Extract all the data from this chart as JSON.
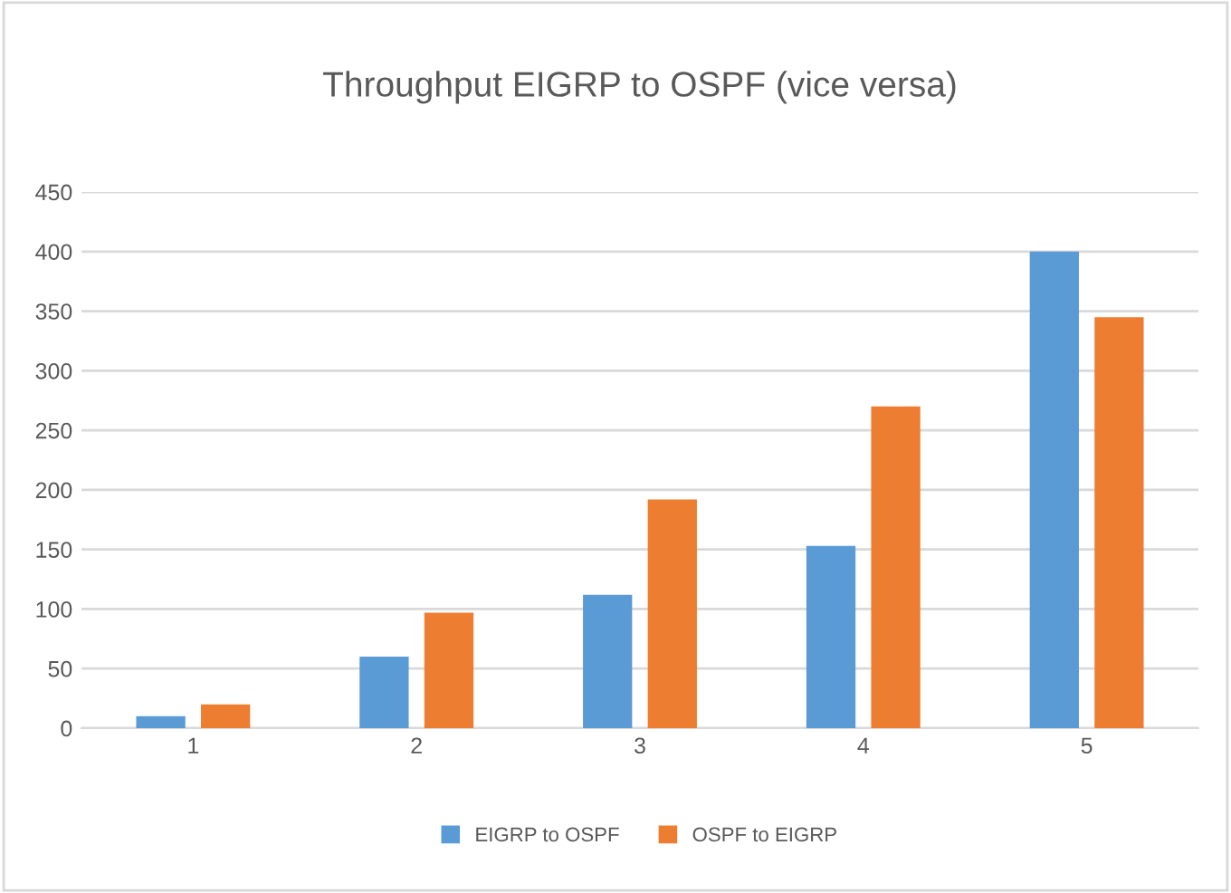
{
  "chart_data": {
    "type": "bar",
    "title": "Throughput EIGRP to OSPF (vice versa)",
    "categories": [
      "1",
      "2",
      "3",
      "4",
      "5"
    ],
    "series": [
      {
        "name": "EIGRP to OSPF",
        "color": "#5b9bd5",
        "values": [
          10,
          60,
          112,
          153,
          400
        ]
      },
      {
        "name": "OSPF to EIGRP",
        "color": "#ed7d31",
        "values": [
          20,
          97,
          192,
          270,
          345
        ]
      }
    ],
    "ylim": [
      0,
      450
    ],
    "yticks": [
      0,
      50,
      100,
      150,
      200,
      250,
      300,
      350,
      400,
      450
    ],
    "grid": "y",
    "legend": "bottom"
  }
}
